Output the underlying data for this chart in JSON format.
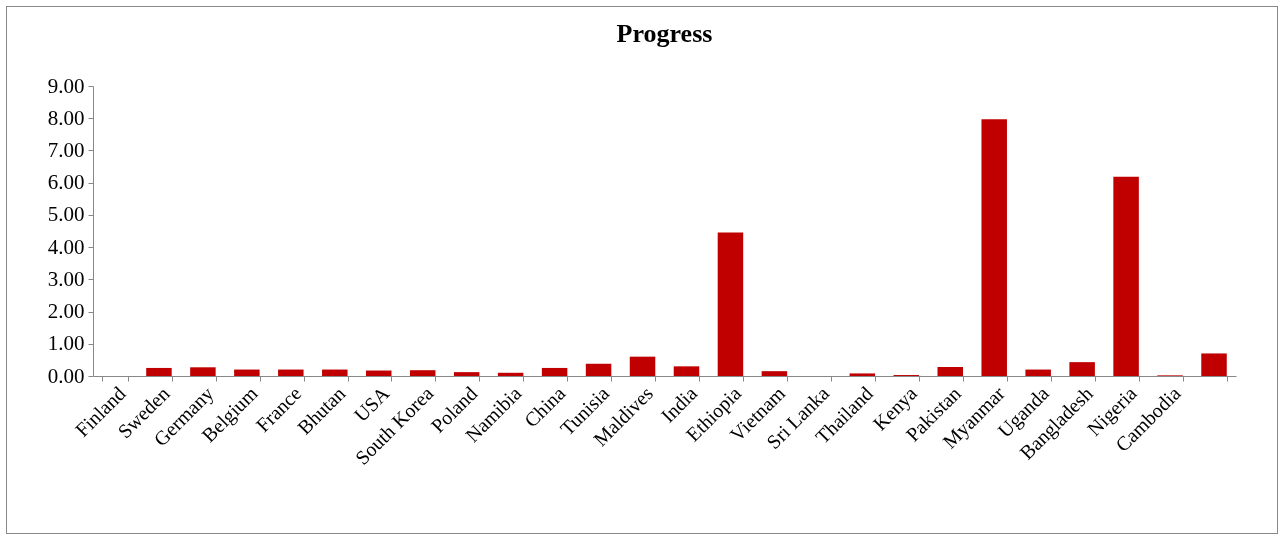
{
  "chart_data": {
    "type": "bar",
    "title": "Progress",
    "categories": [
      "Finland",
      "Sweden",
      "Germany",
      "Belgium",
      "France",
      "Bhutan",
      "USA",
      "South Korea",
      "Poland",
      "Namibia",
      "China",
      "Tunisia",
      "Maldives",
      "India",
      "Ethiopia",
      "Vietnam",
      "Sri Lanka",
      "Thailand",
      "Kenya",
      "Pakistan",
      "Myanmar",
      "Uganda",
      "Bangladesh",
      "Nigeria",
      "Cambodia",
      null
    ],
    "values": [
      0,
      0.25,
      0.27,
      0.2,
      0.2,
      0.2,
      0.17,
      0.18,
      0.12,
      0.1,
      0.25,
      0.38,
      0.6,
      0.3,
      4.45,
      0.15,
      0,
      0.08,
      0.03,
      0.28,
      7.97,
      0.2,
      0.43,
      6.18,
      0.02,
      0.7
    ],
    "color": "#c00000",
    "ylim": [
      0,
      9
    ],
    "yticks": [
      {
        "value": 0,
        "label": "0.00"
      },
      {
        "value": 1,
        "label": "1.00"
      },
      {
        "value": 2,
        "label": "2.00"
      },
      {
        "value": 3,
        "label": "3.00"
      },
      {
        "value": 4,
        "label": "4.00"
      },
      {
        "value": 5,
        "label": "5.00"
      },
      {
        "value": 6,
        "label": "6.00"
      },
      {
        "value": 7,
        "label": "7.00"
      },
      {
        "value": 8,
        "label": "8.00"
      },
      {
        "value": 9,
        "label": "9.00"
      }
    ],
    "grid": false
  }
}
